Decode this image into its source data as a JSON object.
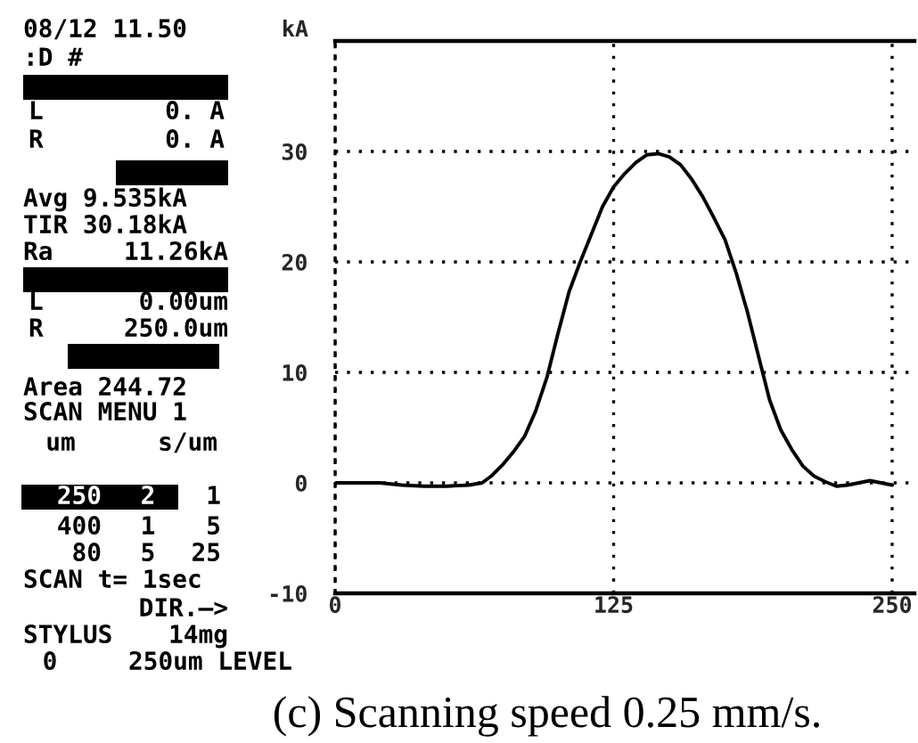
{
  "chart_data": {
    "type": "line",
    "ylabel": "kA",
    "x": [
      0,
      10,
      20,
      30,
      40,
      50,
      60,
      66,
      70,
      75,
      80,
      85,
      90,
      95,
      100,
      105,
      110,
      115,
      120,
      125,
      130,
      135,
      140,
      145,
      150,
      155,
      160,
      165,
      170,
      175,
      180,
      185,
      190,
      195,
      200,
      205,
      210,
      215,
      220,
      225,
      230,
      235,
      240,
      245,
      250
    ],
    "series": [
      {
        "color": "#000000",
        "values": [
          0,
          0,
          0,
          -0.2,
          -0.3,
          -0.3,
          -0.2,
          0,
          0.6,
          1.6,
          2.8,
          4.2,
          6.5,
          9.5,
          13.5,
          17.3,
          20,
          22.5,
          25,
          26.8,
          28,
          29,
          29.7,
          29.8,
          29.5,
          28.8,
          27.5,
          25.9,
          24,
          22,
          19,
          15.5,
          11.5,
          7.5,
          4.8,
          3,
          1.5,
          0.6,
          0.1,
          -0.3,
          -0.2,
          0,
          0.2,
          0,
          -0.2
        ]
      }
    ],
    "xlim": [
      0,
      260
    ],
    "ylim": [
      -10,
      40
    ],
    "xticks": [
      0,
      125,
      250
    ],
    "yticks": [
      -10,
      0,
      10,
      20,
      30
    ],
    "grid": true,
    "annotations": [
      "08/12 11.50",
      ":D #",
      "L",
      "0. A",
      "R",
      "0. A",
      "Avg 9.535kA",
      "TIR 30.18kA",
      "Ra",
      "11.26kA",
      "L",
      "0.00um",
      "R",
      "250.0um",
      "Area 244.72",
      "SCAN MENU 1",
      "um",
      "s/um",
      "250",
      "2",
      "1",
      "400",
      "1",
      "5",
      "80",
      "5",
      "25",
      "SCAN t= 1sec",
      "DIR.—>",
      "STYLUS",
      "14mg",
      "0",
      "250um LEVEL",
      "(c) Scanning speed 0.25 mm/s."
    ]
  }
}
